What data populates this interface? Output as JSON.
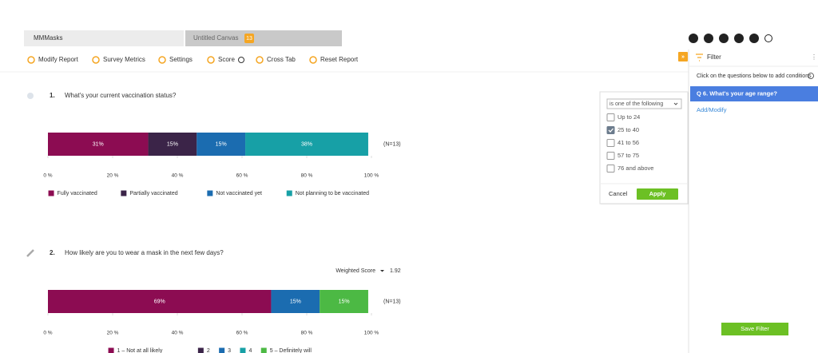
{
  "tabs": [
    {
      "label": "MMMasks"
    },
    {
      "label": "Untitled Canvas",
      "badge": "13"
    }
  ],
  "toolbar": [
    "Modify Report",
    "Survey Metrics",
    "Settings",
    "Score",
    "Cross Tab",
    "Reset Report"
  ],
  "questions": [
    {
      "number": "1.",
      "text": "What's your current vaccination status?",
      "n_label": "(N=13)",
      "chart": {
        "type": "bar",
        "orientation": "horizontal",
        "stacked": true,
        "xlim": [
          0,
          100
        ],
        "xticks": [
          {
            "value": 0,
            "label": "0 %"
          },
          {
            "value": 20,
            "label": "20 %"
          },
          {
            "value": 40,
            "label": "40 %"
          },
          {
            "value": 60,
            "label": "60 %"
          },
          {
            "value": 80,
            "label": "80 %"
          },
          {
            "value": 100,
            "label": "100 %"
          }
        ],
        "series": [
          {
            "name": "Fully vaccinated",
            "color": "#8c0c52",
            "values": [
              31
            ],
            "value_labels": [
              "31%"
            ]
          },
          {
            "name": "Partially vaccinated",
            "color": "#3b2448",
            "values": [
              15
            ],
            "value_labels": [
              "15%"
            ]
          },
          {
            "name": "Not vaccinated yet",
            "color": "#1b6cb0",
            "values": [
              15
            ],
            "value_labels": [
              "15%"
            ]
          },
          {
            "name": "Not planning to be vaccinated",
            "color": "#17a0a6",
            "values": [
              38
            ],
            "value_labels": [
              "38%"
            ]
          }
        ]
      }
    },
    {
      "number": "2.",
      "text": "How likely are you to wear a mask in the next few days?",
      "n_label": "(N=13)",
      "score_label": "Weighted Score",
      "score": 1.92,
      "chart": {
        "type": "bar",
        "orientation": "horizontal",
        "stacked": true,
        "xlim": [
          0,
          100
        ],
        "xticks": [
          {
            "value": 0,
            "label": "0 %"
          },
          {
            "value": 20,
            "label": "20 %"
          },
          {
            "value": 40,
            "label": "40 %"
          },
          {
            "value": 60,
            "label": "60 %"
          },
          {
            "value": 80,
            "label": "80 %"
          },
          {
            "value": 100,
            "label": "100 %"
          }
        ],
        "series": [
          {
            "name": "1 – Not at all likely",
            "color": "#8c0c52",
            "values": [
              69
            ],
            "value_labels": [
              "69%"
            ]
          },
          {
            "name": "2",
            "color": "#3b2448",
            "values": [
              0
            ]
          },
          {
            "name": "3",
            "color": "#1b6cb0",
            "values": [
              15
            ],
            "value_labels": [
              "15%"
            ]
          },
          {
            "name": "4",
            "color": "#17a0a6",
            "values": [
              0
            ]
          },
          {
            "name": "5 – Definitely will",
            "color": "#4cb944",
            "values": [
              15
            ],
            "value_labels": [
              "15%"
            ]
          }
        ]
      }
    }
  ],
  "filter_panel": {
    "title": "Filter",
    "hint": "Click on the questions below to add conditions",
    "question": "Q 6. What's your age range?",
    "add_link": "Add/Modify",
    "save_button": "Save Filter"
  },
  "popup": {
    "operator": "is one of the following",
    "options": [
      {
        "label": "Up to 24",
        "checked": false
      },
      {
        "label": "25 to 40",
        "checked": true
      },
      {
        "label": "41 to 56",
        "checked": false
      },
      {
        "label": "57 to 75",
        "checked": false
      },
      {
        "label": "76 and above",
        "checked": false
      }
    ],
    "cancel": "Cancel",
    "apply": "Apply"
  }
}
